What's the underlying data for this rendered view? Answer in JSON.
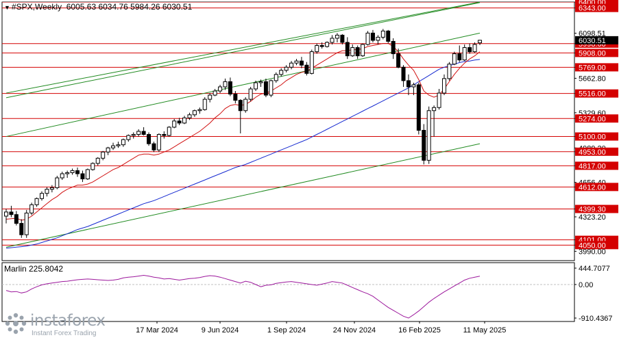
{
  "header": {
    "symbol": "#SPX,Weekly",
    "ohlc": "6005.63 6034.76 5984.26 6030.51"
  },
  "oscillator": {
    "label": "Marlin 225.8042",
    "scale": [
      "444.7077",
      "0.00",
      "-910.4367"
    ]
  },
  "brand": {
    "name": "instaforex",
    "tagline": "Instant Forex Trading"
  },
  "colors": {
    "level": "#d40000",
    "channel": "#1f8a1f",
    "ma_fast": "#d01010",
    "ma_slow": "#1428d0",
    "oscillator": "#9b159b",
    "current_price_box": "#000000"
  },
  "chart_data": {
    "type": "candlestick",
    "timeframe": "Weekly",
    "y_range": [
      3900,
      6400
    ],
    "price_scale_labels": [
      "6400.00",
      "6343.00",
      "6098.51",
      "5998.00",
      "5908.00",
      "5769.00",
      "5662.80",
      "5516.00",
      "5329.60",
      "5274.00",
      "5100.00",
      "4989.20",
      "4953.00",
      "4817.00",
      "4656.40",
      "4612.00",
      "4399.30",
      "4323.20",
      "4101.00",
      "4050.00",
      "3990.00"
    ],
    "horizontal_levels": [
      6400,
      6343,
      5998,
      5908,
      5769,
      5516,
      5274,
      5100,
      4953,
      4817,
      4612,
      4399.3,
      4101,
      4050
    ],
    "current_price": 6030.51,
    "current_price_label": "6030.51",
    "x_labels": [
      "17 Mar 2024",
      "9 Jun 2024",
      "1 Sep 2024",
      "24 Nov 2024",
      "16 Feb 2025",
      "11 May 2025"
    ],
    "candles": [
      {
        "o": 4330,
        "h": 4400,
        "l": 4260,
        "c": 4370
      },
      {
        "o": 4370,
        "h": 4430,
        "l": 4320,
        "c": 4345
      },
      {
        "o": 4345,
        "h": 4380,
        "l": 4240,
        "c": 4260
      },
      {
        "o": 4260,
        "h": 4300,
        "l": 4120,
        "c": 4150
      },
      {
        "o": 4150,
        "h": 4390,
        "l": 4120,
        "c": 4360
      },
      {
        "o": 4360,
        "h": 4460,
        "l": 4340,
        "c": 4440
      },
      {
        "o": 4440,
        "h": 4510,
        "l": 4420,
        "c": 4500
      },
      {
        "o": 4500,
        "h": 4570,
        "l": 4480,
        "c": 4550
      },
      {
        "o": 4550,
        "h": 4610,
        "l": 4520,
        "c": 4590
      },
      {
        "o": 4590,
        "h": 4630,
        "l": 4560,
        "c": 4605
      },
      {
        "o": 4605,
        "h": 4720,
        "l": 4590,
        "c": 4700
      },
      {
        "o": 4700,
        "h": 4760,
        "l": 4680,
        "c": 4740
      },
      {
        "o": 4740,
        "h": 4770,
        "l": 4700,
        "c": 4750
      },
      {
        "o": 4750,
        "h": 4790,
        "l": 4730,
        "c": 4770
      },
      {
        "o": 4770,
        "h": 4800,
        "l": 4710,
        "c": 4740
      },
      {
        "o": 4740,
        "h": 4770,
        "l": 4660,
        "c": 4690
      },
      {
        "o": 4690,
        "h": 4790,
        "l": 4680,
        "c": 4780
      },
      {
        "o": 4780,
        "h": 4850,
        "l": 4770,
        "c": 4840
      },
      {
        "o": 4840,
        "h": 4900,
        "l": 4820,
        "c": 4890
      },
      {
        "o": 4890,
        "h": 4960,
        "l": 4870,
        "c": 4950
      },
      {
        "o": 4950,
        "h": 5000,
        "l": 4920,
        "c": 4990
      },
      {
        "o": 4990,
        "h": 5040,
        "l": 4970,
        "c": 5010
      },
      {
        "o": 5010,
        "h": 5050,
        "l": 4990,
        "c": 5020
      },
      {
        "o": 5020,
        "h": 5080,
        "l": 5000,
        "c": 5070
      },
      {
        "o": 5070,
        "h": 5120,
        "l": 5050,
        "c": 5110
      },
      {
        "o": 5110,
        "h": 5140,
        "l": 5080,
        "c": 5120
      },
      {
        "o": 5120,
        "h": 5170,
        "l": 5100,
        "c": 5150
      },
      {
        "o": 5150,
        "h": 5190,
        "l": 5110,
        "c": 5120
      },
      {
        "o": 5120,
        "h": 5140,
        "l": 5010,
        "c": 5030
      },
      {
        "o": 5030,
        "h": 5050,
        "l": 4950,
        "c": 4970
      },
      {
        "o": 4970,
        "h": 5130,
        "l": 4950,
        "c": 5120
      },
      {
        "o": 5120,
        "h": 5150,
        "l": 5080,
        "c": 5110
      },
      {
        "o": 5110,
        "h": 5200,
        "l": 5100,
        "c": 5190
      },
      {
        "o": 5190,
        "h": 5270,
        "l": 5180,
        "c": 5250
      },
      {
        "o": 5250,
        "h": 5280,
        "l": 5210,
        "c": 5230
      },
      {
        "o": 5230,
        "h": 5300,
        "l": 5220,
        "c": 5280
      },
      {
        "o": 5280,
        "h": 5330,
        "l": 5260,
        "c": 5310
      },
      {
        "o": 5310,
        "h": 5360,
        "l": 5290,
        "c": 5350
      },
      {
        "o": 5350,
        "h": 5380,
        "l": 5320,
        "c": 5360
      },
      {
        "o": 5360,
        "h": 5480,
        "l": 5350,
        "c": 5460
      },
      {
        "o": 5460,
        "h": 5520,
        "l": 5430,
        "c": 5500
      },
      {
        "o": 5500,
        "h": 5560,
        "l": 5490,
        "c": 5540
      },
      {
        "o": 5540,
        "h": 5600,
        "l": 5520,
        "c": 5580
      },
      {
        "o": 5580,
        "h": 5660,
        "l": 5550,
        "c": 5630
      },
      {
        "o": 5630,
        "h": 5670,
        "l": 5490,
        "c": 5510
      },
      {
        "o": 5510,
        "h": 5540,
        "l": 5420,
        "c": 5450
      },
      {
        "o": 5450,
        "h": 5460,
        "l": 5130,
        "c": 5350
      },
      {
        "o": 5350,
        "h": 5480,
        "l": 5330,
        "c": 5460
      },
      {
        "o": 5460,
        "h": 5580,
        "l": 5440,
        "c": 5560
      },
      {
        "o": 5560,
        "h": 5640,
        "l": 5540,
        "c": 5620
      },
      {
        "o": 5620,
        "h": 5650,
        "l": 5580,
        "c": 5630
      },
      {
        "o": 5630,
        "h": 5660,
        "l": 5480,
        "c": 5500
      },
      {
        "o": 5500,
        "h": 5650,
        "l": 5480,
        "c": 5640
      },
      {
        "o": 5640,
        "h": 5720,
        "l": 5620,
        "c": 5700
      },
      {
        "o": 5700,
        "h": 5760,
        "l": 5680,
        "c": 5740
      },
      {
        "o": 5740,
        "h": 5790,
        "l": 5720,
        "c": 5770
      },
      {
        "o": 5770,
        "h": 5830,
        "l": 5750,
        "c": 5810
      },
      {
        "o": 5810,
        "h": 5850,
        "l": 5790,
        "c": 5830
      },
      {
        "o": 5830,
        "h": 5870,
        "l": 5760,
        "c": 5790
      },
      {
        "o": 5790,
        "h": 5820,
        "l": 5690,
        "c": 5710
      },
      {
        "o": 5710,
        "h": 5940,
        "l": 5700,
        "c": 5920
      },
      {
        "o": 5920,
        "h": 6000,
        "l": 5900,
        "c": 5980
      },
      {
        "o": 5980,
        "h": 6010,
        "l": 5950,
        "c": 5970
      },
      {
        "o": 5970,
        "h": 6020,
        "l": 5960,
        "c": 6010
      },
      {
        "o": 6010,
        "h": 6080,
        "l": 5990,
        "c": 6050
      },
      {
        "o": 6050,
        "h": 6100,
        "l": 6010,
        "c": 6080
      },
      {
        "o": 6080,
        "h": 6090,
        "l": 5990,
        "c": 6010
      },
      {
        "o": 6010,
        "h": 6060,
        "l": 5850,
        "c": 5880
      },
      {
        "o": 5880,
        "h": 5990,
        "l": 5870,
        "c": 5960
      },
      {
        "o": 5960,
        "h": 5980,
        "l": 5850,
        "c": 5880
      },
      {
        "o": 5880,
        "h": 6000,
        "l": 5870,
        "c": 5990
      },
      {
        "o": 5990,
        "h": 6120,
        "l": 5980,
        "c": 6100
      },
      {
        "o": 6100,
        "h": 6130,
        "l": 6010,
        "c": 6030
      },
      {
        "o": 6030,
        "h": 6080,
        "l": 5990,
        "c": 6060
      },
      {
        "o": 6060,
        "h": 6140,
        "l": 6040,
        "c": 6120
      },
      {
        "o": 6120,
        "h": 6130,
        "l": 6000,
        "c": 6020
      },
      {
        "o": 6020,
        "h": 6050,
        "l": 5850,
        "c": 5900
      },
      {
        "o": 5900,
        "h": 5950,
        "l": 5760,
        "c": 5770
      },
      {
        "o": 5770,
        "h": 5790,
        "l": 5580,
        "c": 5640
      },
      {
        "o": 5640,
        "h": 5700,
        "l": 5500,
        "c": 5580
      },
      {
        "o": 5580,
        "h": 5620,
        "l": 5500,
        "c": 5600
      },
      {
        "o": 5600,
        "h": 5620,
        "l": 5120,
        "c": 5160
      },
      {
        "o": 5160,
        "h": 5220,
        "l": 4830,
        "c": 4870
      },
      {
        "o": 4870,
        "h": 5390,
        "l": 4835,
        "c": 5350
      },
      {
        "o": 5350,
        "h": 5400,
        "l": 5100,
        "c": 5380
      },
      {
        "o": 5380,
        "h": 5560,
        "l": 5360,
        "c": 5520
      },
      {
        "o": 5520,
        "h": 5700,
        "l": 5500,
        "c": 5660
      },
      {
        "o": 5660,
        "h": 5820,
        "l": 5640,
        "c": 5800
      },
      {
        "o": 5800,
        "h": 5920,
        "l": 5790,
        "c": 5900
      },
      {
        "o": 5900,
        "h": 5980,
        "l": 5820,
        "c": 5840
      },
      {
        "o": 5840,
        "h": 5990,
        "l": 5830,
        "c": 5960
      },
      {
        "o": 5960,
        "h": 6000,
        "l": 5900,
        "c": 5920
      },
      {
        "o": 5920,
        "h": 6010,
        "l": 5910,
        "c": 5990
      },
      {
        "o": 6005.63,
        "h": 6034.76,
        "l": 5984.26,
        "c": 6030.51
      }
    ],
    "ma_fast": [
      4300,
      4305,
      4310,
      4290,
      4300,
      4330,
      4370,
      4410,
      4450,
      4490,
      4520,
      4560,
      4590,
      4610,
      4630,
      4630,
      4640,
      4660,
      4690,
      4720,
      4750,
      4780,
      4800,
      4830,
      4860,
      4890,
      4920,
      4930,
      4930,
      4920,
      4930,
      4950,
      4970,
      5000,
      5030,
      5060,
      5090,
      5120,
      5150,
      5190,
      5230,
      5280,
      5320,
      5370,
      5400,
      5410,
      5400,
      5410,
      5440,
      5480,
      5510,
      5520,
      5540,
      5570,
      5600,
      5640,
      5670,
      5700,
      5720,
      5730,
      5760,
      5790,
      5820,
      5850,
      5880,
      5910,
      5930,
      5930,
      5940,
      5940,
      5950,
      5970,
      5980,
      5990,
      6000,
      6000,
      5970,
      5920,
      5850,
      5790,
      5740,
      5650,
      5540,
      5500,
      5480,
      5500,
      5560,
      5630,
      5700,
      5760,
      5810,
      5850,
      5880,
      5920
    ],
    "ma_slow": [
      4020,
      4025,
      4030,
      4035,
      4040,
      4050,
      4060,
      4075,
      4090,
      4105,
      4120,
      4140,
      4160,
      4180,
      4200,
      4215,
      4230,
      4250,
      4270,
      4290,
      4310,
      4330,
      4350,
      4370,
      4390,
      4410,
      4430,
      4450,
      4465,
      4480,
      4500,
      4520,
      4540,
      4560,
      4580,
      4600,
      4620,
      4640,
      4660,
      4680,
      4700,
      4720,
      4740,
      4760,
      4780,
      4800,
      4815,
      4830,
      4850,
      4870,
      4890,
      4910,
      4930,
      4950,
      4970,
      4990,
      5010,
      5030,
      5050,
      5070,
      5095,
      5120,
      5145,
      5170,
      5195,
      5220,
      5245,
      5270,
      5295,
      5320,
      5345,
      5370,
      5395,
      5420,
      5445,
      5470,
      5495,
      5520,
      5545,
      5570,
      5600,
      5630,
      5660,
      5690,
      5720,
      5750,
      5770,
      5785,
      5800,
      5815,
      5825,
      5830,
      5840,
      5845
    ],
    "channel_lines": [
      {
        "x1": 0,
        "y1": 5520,
        "x2": 93,
        "y2": 6400
      },
      {
        "x1": 0,
        "y1": 5475,
        "x2": 93,
        "y2": 6395
      },
      {
        "x1": 0,
        "y1": 5100,
        "x2": 93,
        "y2": 6100
      },
      {
        "x1": 0,
        "y1": 4030,
        "x2": 93,
        "y2": 5030
      }
    ],
    "oscillator_values": [
      -160,
      -200,
      -190,
      -230,
      -200,
      -120,
      -60,
      -10,
      20,
      40,
      60,
      80,
      90,
      110,
      130,
      140,
      150,
      140,
      130,
      120,
      110,
      120,
      140,
      180,
      200,
      210,
      230,
      250,
      230,
      200,
      180,
      150,
      160,
      140,
      120,
      140,
      160,
      170,
      190,
      220,
      240,
      230,
      200,
      160,
      120,
      80,
      40,
      90,
      60,
      0,
      -60,
      -20,
      -10,
      30,
      50,
      70,
      80,
      60,
      40,
      20,
      0,
      -20,
      10,
      40,
      80,
      60,
      40,
      -20,
      -80,
      -140,
      -200,
      -250,
      -320,
      -420,
      -520,
      -620,
      -700,
      -780,
      -860,
      -910,
      -820,
      -720,
      -600,
      -480,
      -380,
      -290,
      -200,
      -120,
      -40,
      40,
      120,
      170,
      200,
      225.8
    ]
  }
}
